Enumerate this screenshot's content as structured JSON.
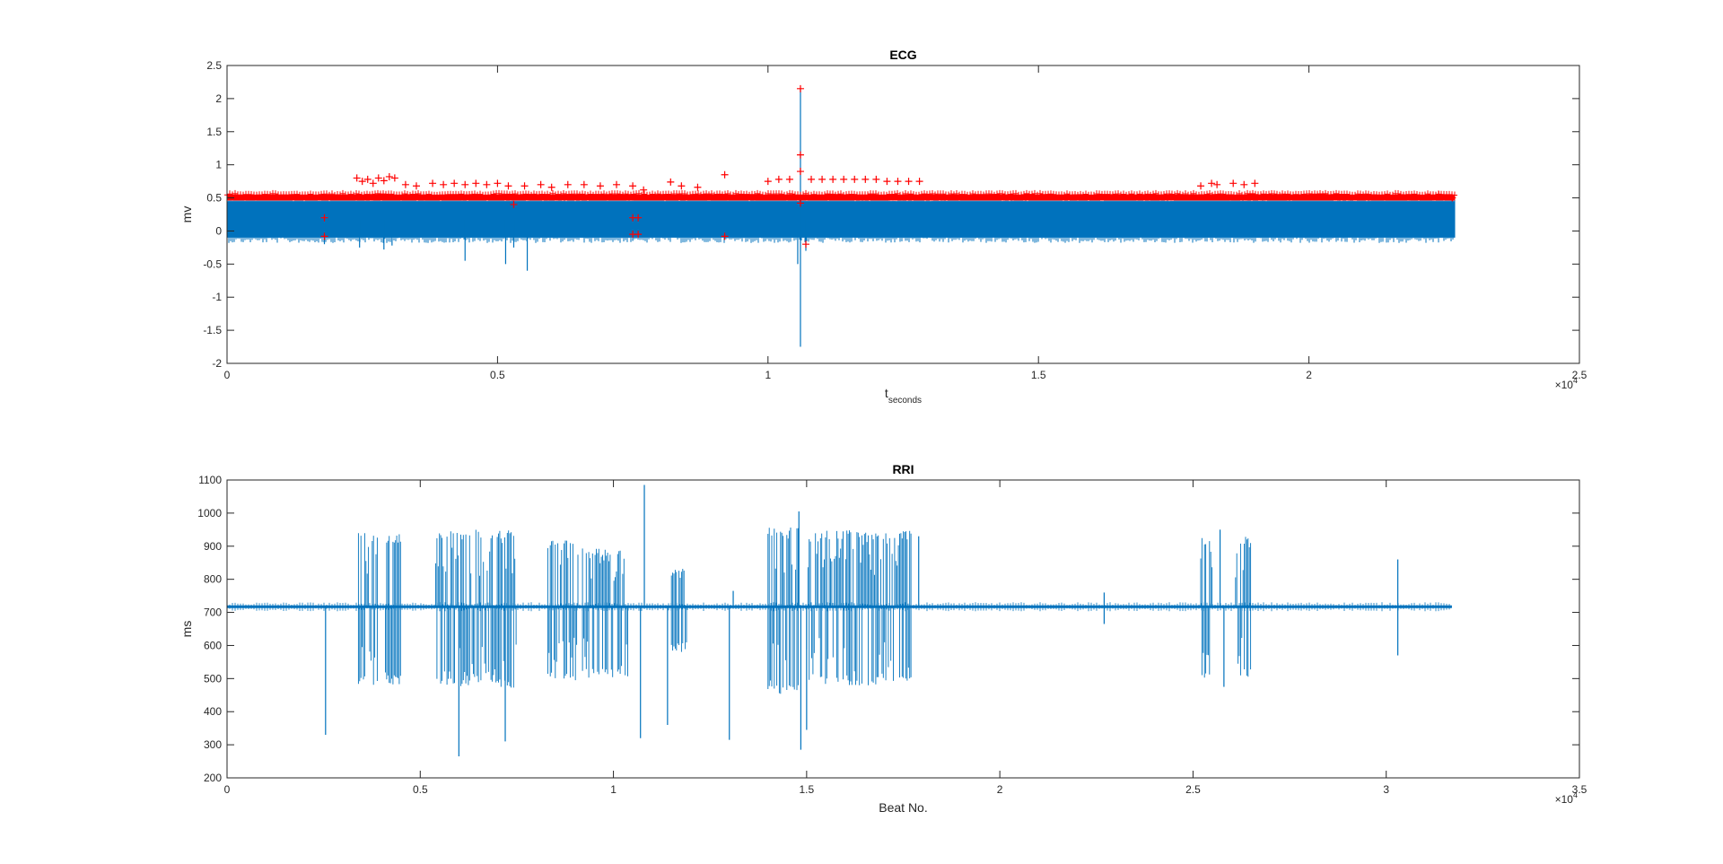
{
  "figure": {
    "background": "#ffffff",
    "axes_color": "#262626"
  },
  "chart_data": [
    {
      "type": "line",
      "title": "ECG",
      "xlabel": "t",
      "xlabel_sub": "seconds",
      "ylabel": "mv",
      "xlim": [
        0,
        25000
      ],
      "ylim": [
        -2,
        2.5
      ],
      "x_exponent_label": "×10",
      "x_exponent_power": "4",
      "x_ticks": [
        0,
        5000,
        10000,
        15000,
        20000,
        25000
      ],
      "x_tick_labels": [
        "0",
        "0.5",
        "1",
        "1.5",
        "2",
        "2.5"
      ],
      "y_ticks": [
        -2,
        -1.5,
        -1,
        -0.5,
        0,
        0.5,
        1,
        1.5,
        2,
        2.5
      ],
      "y_tick_labels": [
        "-2",
        "-1.5",
        "-1",
        "-0.5",
        "0",
        "0.5",
        "1",
        "1.5",
        "2",
        "2.5"
      ],
      "series": [
        {
          "style": "line",
          "color": "#0072BD",
          "band": {
            "x_start": 0,
            "x_end": 22700,
            "y_min": -0.1,
            "y_max": 0.45
          },
          "spikes": [
            {
              "x": 1800,
              "y": -0.2
            },
            {
              "x": 2450,
              "y": -0.25
            },
            {
              "x": 2900,
              "y": -0.28
            },
            {
              "x": 3050,
              "y": -0.22
            },
            {
              "x": 4400,
              "y": -0.45
            },
            {
              "x": 5150,
              "y": -0.5
            },
            {
              "x": 5300,
              "y": -0.25
            },
            {
              "x": 5550,
              "y": -0.6
            },
            {
              "x": 7500,
              "y": -0.15
            },
            {
              "x": 9200,
              "y": -0.1
            },
            {
              "x": 10600,
              "y": -1.75
            },
            {
              "x": 10600,
              "y": 2.15
            },
            {
              "x": 10550,
              "y": -0.5
            },
            {
              "x": 10700,
              "y": -0.3
            }
          ]
        },
        {
          "style": "markers",
          "marker": "+",
          "color": "#FF0000",
          "baseline": {
            "x_start": 0,
            "x_end": 22700,
            "y_min": 0.46,
            "y_max": 0.55
          },
          "points": [
            {
              "x": 1800,
              "y": 0.2
            },
            {
              "x": 1800,
              "y": -0.08
            },
            {
              "x": 2400,
              "y": 0.8
            },
            {
              "x": 2500,
              "y": 0.75
            },
            {
              "x": 2600,
              "y": 0.78
            },
            {
              "x": 2700,
              "y": 0.72
            },
            {
              "x": 2800,
              "y": 0.8
            },
            {
              "x": 2900,
              "y": 0.76
            },
            {
              "x": 3000,
              "y": 0.82
            },
            {
              "x": 3100,
              "y": 0.8
            },
            {
              "x": 3300,
              "y": 0.7
            },
            {
              "x": 3500,
              "y": 0.68
            },
            {
              "x": 3800,
              "y": 0.72
            },
            {
              "x": 4000,
              "y": 0.7
            },
            {
              "x": 4200,
              "y": 0.72
            },
            {
              "x": 4400,
              "y": 0.7
            },
            {
              "x": 4600,
              "y": 0.72
            },
            {
              "x": 4800,
              "y": 0.7
            },
            {
              "x": 5000,
              "y": 0.72
            },
            {
              "x": 5200,
              "y": 0.68
            },
            {
              "x": 5300,
              "y": 0.4
            },
            {
              "x": 5500,
              "y": 0.68
            },
            {
              "x": 5800,
              "y": 0.7
            },
            {
              "x": 6000,
              "y": 0.66
            },
            {
              "x": 6300,
              "y": 0.7
            },
            {
              "x": 6600,
              "y": 0.7
            },
            {
              "x": 6900,
              "y": 0.68
            },
            {
              "x": 7200,
              "y": 0.7
            },
            {
              "x": 7500,
              "y": 0.68
            },
            {
              "x": 7500,
              "y": 0.2
            },
            {
              "x": 7600,
              "y": 0.2
            },
            {
              "x": 7600,
              "y": -0.05
            },
            {
              "x": 7500,
              "y": -0.05
            },
            {
              "x": 7700,
              "y": 0.62
            },
            {
              "x": 8200,
              "y": 0.74
            },
            {
              "x": 8400,
              "y": 0.68
            },
            {
              "x": 8700,
              "y": 0.66
            },
            {
              "x": 9200,
              "y": 0.85
            },
            {
              "x": 9200,
              "y": -0.08
            },
            {
              "x": 10000,
              "y": 0.75
            },
            {
              "x": 10200,
              "y": 0.78
            },
            {
              "x": 10400,
              "y": 0.78
            },
            {
              "x": 10600,
              "y": 2.15
            },
            {
              "x": 10600,
              "y": 1.15
            },
            {
              "x": 10600,
              "y": 0.9
            },
            {
              "x": 10600,
              "y": 0.42
            },
            {
              "x": 10700,
              "y": -0.2
            },
            {
              "x": 10800,
              "y": 0.78
            },
            {
              "x": 11000,
              "y": 0.78
            },
            {
              "x": 11200,
              "y": 0.78
            },
            {
              "x": 11400,
              "y": 0.78
            },
            {
              "x": 11600,
              "y": 0.78
            },
            {
              "x": 11800,
              "y": 0.78
            },
            {
              "x": 12000,
              "y": 0.78
            },
            {
              "x": 12200,
              "y": 0.75
            },
            {
              "x": 12400,
              "y": 0.75
            },
            {
              "x": 12600,
              "y": 0.75
            },
            {
              "x": 12800,
              "y": 0.75
            },
            {
              "x": 18000,
              "y": 0.68
            },
            {
              "x": 18200,
              "y": 0.72
            },
            {
              "x": 18300,
              "y": 0.7
            },
            {
              "x": 18600,
              "y": 0.72
            },
            {
              "x": 18800,
              "y": 0.7
            },
            {
              "x": 19000,
              "y": 0.72
            },
            {
              "x": 22400,
              "y": 0.55
            },
            {
              "x": 22650,
              "y": 0.5
            }
          ]
        }
      ]
    },
    {
      "type": "line",
      "title": "RRI",
      "xlabel": "Beat No.",
      "ylabel": "ms",
      "xlim": [
        0,
        35000
      ],
      "ylim": [
        200,
        1100
      ],
      "x_exponent_label": "×10",
      "x_exponent_power": "4",
      "x_ticks": [
        0,
        5000,
        10000,
        15000,
        20000,
        25000,
        30000,
        35000
      ],
      "x_tick_labels": [
        "0",
        "0.5",
        "1",
        "1.5",
        "2",
        "2.5",
        "3",
        "3.5"
      ],
      "y_ticks": [
        200,
        300,
        400,
        500,
        600,
        700,
        800,
        900,
        1000,
        1100
      ],
      "y_tick_labels": [
        "200",
        "300",
        "400",
        "500",
        "600",
        "700",
        "800",
        "900",
        "1000",
        "1100"
      ],
      "series": [
        {
          "style": "line",
          "color": "#0072BD",
          "baseline": {
            "x_start": 0,
            "x_end": 31700,
            "y": 717
          },
          "bursts": [
            {
              "x_start": 3400,
              "x_end": 3900,
              "y_min": 480,
              "y_max": 950
            },
            {
              "x_start": 4100,
              "x_end": 4500,
              "y_min": 480,
              "y_max": 940
            },
            {
              "x_start": 5400,
              "x_end": 7500,
              "y_min": 470,
              "y_max": 950
            },
            {
              "x_start": 8300,
              "x_end": 9100,
              "y_min": 490,
              "y_max": 920
            },
            {
              "x_start": 9200,
              "x_end": 10400,
              "y_min": 500,
              "y_max": 900
            },
            {
              "x_start": 11500,
              "x_end": 11900,
              "y_min": 580,
              "y_max": 840
            },
            {
              "x_start": 14000,
              "x_end": 14800,
              "y_min": 450,
              "y_max": 960
            },
            {
              "x_start": 15000,
              "x_end": 17700,
              "y_min": 480,
              "y_max": 950
            },
            {
              "x_start": 25200,
              "x_end": 25500,
              "y_min": 500,
              "y_max": 930
            },
            {
              "x_start": 26100,
              "x_end": 26500,
              "y_min": 500,
              "y_max": 930
            }
          ],
          "spikes": [
            {
              "x": 2550,
              "y": 330
            },
            {
              "x": 6000,
              "y": 265
            },
            {
              "x": 7200,
              "y": 310
            },
            {
              "x": 10800,
              "y": 1085
            },
            {
              "x": 10700,
              "y": 320
            },
            {
              "x": 11400,
              "y": 360
            },
            {
              "x": 13000,
              "y": 315
            },
            {
              "x": 13100,
              "y": 765
            },
            {
              "x": 14800,
              "y": 1005
            },
            {
              "x": 14850,
              "y": 285
            },
            {
              "x": 15000,
              "y": 345
            },
            {
              "x": 17900,
              "y": 930
            },
            {
              "x": 22700,
              "y": 760
            },
            {
              "x": 22700,
              "y": 665
            },
            {
              "x": 25700,
              "y": 950
            },
            {
              "x": 25800,
              "y": 475
            },
            {
              "x": 30300,
              "y": 860
            },
            {
              "x": 30300,
              "y": 570
            }
          ]
        }
      ]
    }
  ]
}
